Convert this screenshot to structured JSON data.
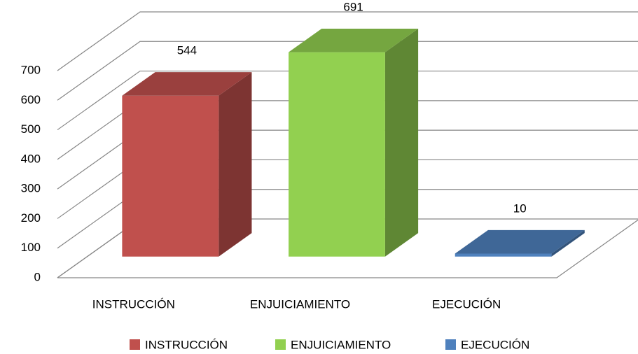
{
  "chart_data": {
    "type": "bar3d",
    "categories": [
      "INSTRUCCIÓN",
      "ENJUICIAMIENTO",
      "EJECUCIÓN"
    ],
    "series": [
      {
        "name": "INSTRUCCIÓN",
        "color": "#c0504d"
      },
      {
        "name": "ENJUICIAMIENTO",
        "color": "#92d050"
      },
      {
        "name": "EJECUCIÓN",
        "color": "#4f81bd"
      }
    ],
    "values": [
      544,
      691,
      10
    ],
    "ylim": [
      0,
      700
    ],
    "yticks": [
      0,
      100,
      200,
      300,
      400,
      500,
      600,
      700
    ],
    "grid": true,
    "legend": "bottom"
  }
}
